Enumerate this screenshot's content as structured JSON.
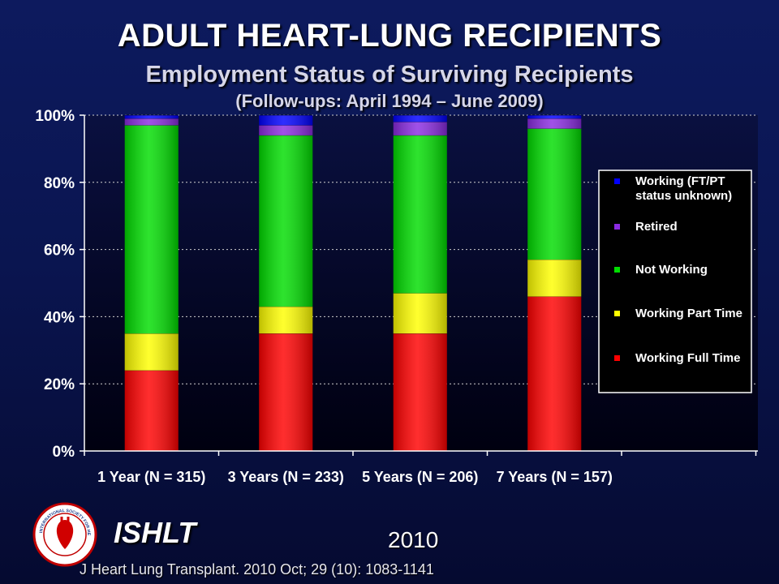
{
  "header": {
    "title": "ADULT HEART-LUNG RECIPIENTS",
    "subtitle": "Employment Status of Surviving Recipients",
    "subtitle2": "(Follow-ups: April 1994 – June 2009)"
  },
  "footer": {
    "brand": "ISHLT",
    "year": "2010",
    "citation": "J Heart Lung Transplant. 2010 Oct; 29 (10): 1083-1141",
    "logo_text": "INTERNATIONAL SOCIETY FOR HEART & LUNG TRANSPLANTATION"
  },
  "chart_data": {
    "type": "bar",
    "stacked": true,
    "percent": true,
    "categories": [
      "1 Year (N = 315)",
      "3 Years (N = 233)",
      "5 Years (N = 206)",
      "7 Years (N = 157)"
    ],
    "ylim": [
      0,
      100
    ],
    "yticks": [
      "0%",
      "20%",
      "40%",
      "60%",
      "80%",
      "100%"
    ],
    "grid": true,
    "legend_position": "right",
    "series": [
      {
        "name": "Working Full Time",
        "color": "#ff0000",
        "values": [
          24,
          35,
          35,
          46
        ]
      },
      {
        "name": "Working Part Time",
        "color": "#ffff00",
        "values": [
          11,
          8,
          12,
          11
        ]
      },
      {
        "name": "Not Working",
        "color": "#00dd00",
        "values": [
          62,
          51,
          47,
          39
        ]
      },
      {
        "name": "Retired",
        "color": "#8b2be2",
        "values": [
          2,
          3,
          4,
          3
        ]
      },
      {
        "name": "Working (FT/PT status unknown)",
        "color": "#0000ff",
        "values": [
          1,
          3,
          2,
          1
        ]
      }
    ],
    "legend_labels": [
      [
        "Working (FT/PT",
        "status unknown)"
      ],
      [
        "Retired"
      ],
      [
        "Not Working"
      ],
      [
        "Working Part Time"
      ],
      [
        "Working Full Time"
      ]
    ]
  }
}
